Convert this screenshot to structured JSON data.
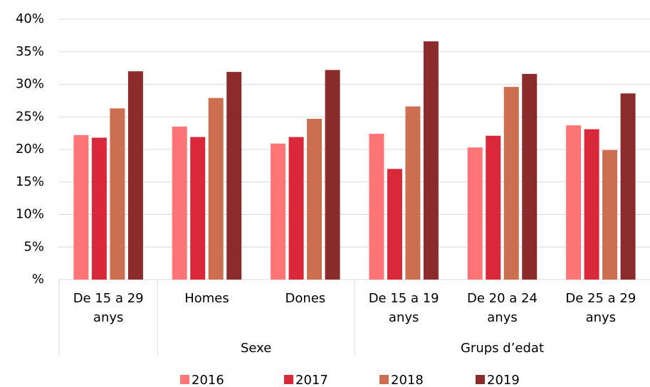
{
  "chart_data": {
    "type": "bar",
    "categories": [
      "De 15 a 29 anys",
      "Homes",
      "Dones",
      "De 15 a 19 anys",
      "De 20 a 24 anys",
      "De 25 a 29 anys"
    ],
    "category_groups": [
      {
        "label": "Sexe",
        "start": 1,
        "end": 2
      },
      {
        "label": "Grups d’edat",
        "start": 3,
        "end": 5
      }
    ],
    "series": [
      {
        "name": "2016",
        "color": "#ff7477",
        "values": [
          22.2,
          23.5,
          20.9,
          22.4,
          20.3,
          23.7
        ]
      },
      {
        "name": "2017",
        "color": "#d9283a",
        "values": [
          21.8,
          21.9,
          21.9,
          17.0,
          22.1,
          23.1
        ]
      },
      {
        "name": "2018",
        "color": "#cc6f50",
        "values": [
          26.3,
          27.9,
          24.7,
          26.6,
          29.6,
          19.9
        ]
      },
      {
        "name": "2019",
        "color": "#8b2b2b",
        "values": [
          32.0,
          31.9,
          32.2,
          36.6,
          31.6,
          28.6
        ]
      }
    ],
    "ylim": [
      0,
      40
    ],
    "yticks": [
      {
        "value": 0,
        "label": "%"
      },
      {
        "value": 5,
        "label": "5%"
      },
      {
        "value": 10,
        "label": "10%"
      },
      {
        "value": 15,
        "label": "15%"
      },
      {
        "value": 20,
        "label": "20%"
      },
      {
        "value": 25,
        "label": "25%"
      },
      {
        "value": 30,
        "label": "30%"
      },
      {
        "value": 35,
        "label": "35%"
      },
      {
        "value": 40,
        "label": "40%"
      }
    ],
    "grid": true,
    "legend": "bottom"
  }
}
